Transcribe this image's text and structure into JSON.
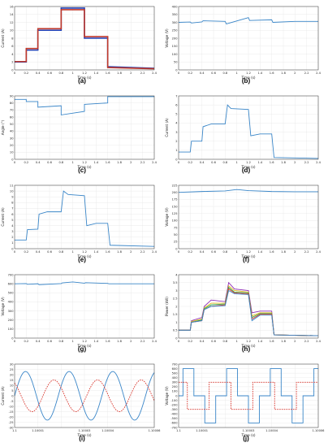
{
  "chart_data": [
    {
      "type": "line",
      "caption": "(a)",
      "xlabel": "Time (s)",
      "ylabel": "Current (A)",
      "xlim": [
        0,
        2.4
      ],
      "ylim": [
        0,
        16
      ],
      "xticks": [
        0,
        0.2,
        0.4,
        0.6,
        0.8,
        1,
        1.2,
        1.4,
        1.6,
        1.8,
        2,
        2.2,
        2.4
      ],
      "yticks": [
        0,
        2,
        4,
        6,
        8,
        10,
        12,
        14,
        16
      ],
      "grid": true,
      "series": [
        {
          "color": "#1f3fb5",
          "x": [
            0,
            0.2,
            0.2,
            0.4,
            0.4,
            0.8,
            0.8,
            1.2,
            1.2,
            1.6,
            1.6,
            2.4
          ],
          "y": [
            2,
            2,
            5,
            5,
            10,
            10,
            15.6,
            15.6,
            8,
            8,
            0.8,
            0.4
          ]
        },
        {
          "color": "#c0392b",
          "x": [
            0,
            0.2,
            0.2,
            0.4,
            0.4,
            0.8,
            0.8,
            1.2,
            1.2,
            1.6,
            1.6,
            2.4
          ],
          "y": [
            2.1,
            2.1,
            5.4,
            5.4,
            10.4,
            10.4,
            15.2,
            15.2,
            8.4,
            8.4,
            0.6,
            0.3
          ]
        }
      ]
    },
    {
      "type": "line",
      "caption": "(b)",
      "xlabel": "Time (s)",
      "ylabel": "Voltage (V)",
      "xlim": [
        0,
        2.4
      ],
      "ylim": [
        0,
        400
      ],
      "xticks": [
        0,
        0.2,
        0.4,
        0.6,
        0.8,
        1,
        1.2,
        1.4,
        1.6,
        1.8,
        2,
        2.2,
        2.4
      ],
      "yticks": [
        0,
        50,
        100,
        150,
        200,
        250,
        300,
        350,
        400
      ],
      "grid": true,
      "series": [
        {
          "color": "#3a86c8",
          "x": [
            0,
            0.2,
            0.22,
            0.4,
            0.42,
            0.8,
            0.82,
            1.2,
            1.22,
            1.6,
            1.62,
            2.0,
            2.4
          ],
          "y": [
            300,
            302,
            296,
            303,
            310,
            306,
            290,
            330,
            312,
            316,
            300,
            306,
            306
          ]
        }
      ]
    },
    {
      "type": "line",
      "caption": "(c)",
      "xlabel": "Time (s)",
      "ylabel": "Angle (°)",
      "xlim": [
        0,
        2.4
      ],
      "ylim": [
        0,
        90
      ],
      "xticks": [
        0,
        0.2,
        0.4,
        0.6,
        0.8,
        1,
        1.2,
        1.4,
        1.6,
        1.8,
        2,
        2.2,
        2.4
      ],
      "yticks": [
        0,
        10,
        20,
        30,
        40,
        50,
        60,
        70,
        80,
        90
      ],
      "grid": true,
      "series": [
        {
          "color": "#3a86c8",
          "x": [
            0,
            0.2,
            0.2,
            0.4,
            0.4,
            0.8,
            0.8,
            1.2,
            1.2,
            1.6,
            1.6,
            2.4
          ],
          "y": [
            85,
            85,
            82,
            82,
            74,
            76,
            63,
            68,
            78,
            80,
            89,
            89
          ]
        }
      ]
    },
    {
      "type": "line",
      "caption": "(d)",
      "xlabel": "Time (s)",
      "ylabel": "Current (A)",
      "xlim": [
        0,
        2.4
      ],
      "ylim": [
        0,
        7
      ],
      "xticks": [
        0,
        0.2,
        0.4,
        0.6,
        0.8,
        1,
        1.2,
        1.4,
        1.6,
        1.8,
        2,
        2.2,
        2.4
      ],
      "yticks": [
        0,
        1,
        2,
        3,
        4,
        5,
        6,
        7
      ],
      "grid": true,
      "series": [
        {
          "color": "#3a86c8",
          "x": [
            0,
            0.2,
            0.22,
            0.4,
            0.42,
            0.56,
            0.8,
            0.84,
            0.9,
            1.2,
            1.24,
            1.4,
            1.6,
            1.64,
            2.4
          ],
          "y": [
            0.8,
            0.8,
            2.0,
            2.0,
            3.6,
            3.9,
            3.9,
            6.0,
            5.6,
            5.5,
            2.6,
            2.8,
            2.8,
            0.2,
            0.1
          ]
        }
      ]
    },
    {
      "type": "line",
      "caption": "(e)",
      "xlabel": "Time (s)",
      "ylabel": "Current (A)",
      "xlim": [
        0,
        2.4
      ],
      "ylim": [
        0,
        11
      ],
      "xticks": [
        0,
        0.2,
        0.4,
        0.6,
        0.8,
        1,
        1.2,
        1.4,
        1.6,
        1.8,
        2,
        2.2,
        2.4
      ],
      "yticks": [
        0,
        1,
        2,
        3,
        4,
        5,
        6,
        7,
        8,
        9,
        10,
        11
      ],
      "grid": true,
      "series": [
        {
          "color": "#3a86c8",
          "x": [
            0,
            0.2,
            0.22,
            0.4,
            0.42,
            0.56,
            0.8,
            0.84,
            0.92,
            1.2,
            1.24,
            1.4,
            1.6,
            1.64,
            2.4
          ],
          "y": [
            1.5,
            1.5,
            3.3,
            3.4,
            6.0,
            6.4,
            6.4,
            10.0,
            9.4,
            9.2,
            4.0,
            4.4,
            4.4,
            0.6,
            0.4
          ]
        }
      ]
    },
    {
      "type": "line",
      "caption": "(f)",
      "xlabel": "Time (s)",
      "ylabel": "Voltage (V)",
      "xlim": [
        0,
        2.4
      ],
      "ylim": [
        0,
        225
      ],
      "xticks": [
        0,
        0.2,
        0.4,
        0.6,
        0.8,
        1,
        1.2,
        1.4,
        1.6,
        1.8,
        2,
        2.2,
        2.4
      ],
      "yticks": [
        0,
        25,
        50,
        75,
        100,
        125,
        150,
        175,
        200,
        225
      ],
      "grid": true,
      "series": [
        {
          "color": "#3a86c8",
          "x": [
            0,
            0.4,
            0.8,
            1.0,
            1.2,
            1.6,
            2.0,
            2.4
          ],
          "y": [
            200,
            203,
            205,
            210,
            206,
            203,
            202,
            202
          ]
        }
      ]
    },
    {
      "type": "line",
      "caption": "(g)",
      "xlabel": "Time (s)",
      "ylabel": "Voltage (V)",
      "xlim": [
        0,
        2.4
      ],
      "ylim": [
        0,
        700
      ],
      "xticks": [
        0,
        0.2,
        0.4,
        0.6,
        0.8,
        1,
        1.2,
        1.4,
        1.6,
        1.8,
        2,
        2.2,
        2.4
      ],
      "yticks": [
        0,
        100,
        200,
        300,
        400,
        500,
        600,
        700
      ],
      "grid": true,
      "series": [
        {
          "color": "#3a86c8",
          "x": [
            0,
            0.2,
            0.22,
            0.4,
            0.42,
            0.8,
            0.82,
            1.0,
            1.2,
            1.22,
            1.6,
            1.62,
            2.4
          ],
          "y": [
            600,
            602,
            594,
            600,
            590,
            602,
            610,
            620,
            606,
            612,
            604,
            600,
            600
          ]
        }
      ]
    },
    {
      "type": "line",
      "caption": "(h)",
      "xlabel": "Time (s)",
      "ylabel": "Power (kW)",
      "xlim": [
        0,
        2.4
      ],
      "ylim": [
        0,
        4
      ],
      "xticks": [
        0,
        0.2,
        0.4,
        0.6,
        0.8,
        1,
        1.2,
        1.4,
        1.6,
        1.8,
        2,
        2.2,
        2.4
      ],
      "yticks": [
        0,
        0.5,
        1,
        1.5,
        2,
        2.5,
        3,
        3.5,
        4
      ],
      "grid": true,
      "series": [
        {
          "color": "#8e2db5",
          "x": [
            0,
            0.2,
            0.22,
            0.4,
            0.44,
            0.56,
            0.8,
            0.86,
            0.96,
            1.2,
            1.26,
            1.4,
            1.6,
            1.64,
            2.4
          ],
          "y": [
            0.5,
            0.5,
            1.1,
            1.3,
            2.0,
            2.4,
            2.3,
            3.5,
            3.1,
            3.0,
            1.6,
            1.7,
            1.7,
            0.2,
            0.15
          ]
        },
        {
          "color": "#e3b81e",
          "x": [
            0,
            0.2,
            0.22,
            0.4,
            0.44,
            0.56,
            0.8,
            0.86,
            0.96,
            1.2,
            1.26,
            1.4,
            1.6,
            1.64,
            2.4
          ],
          "y": [
            0.5,
            0.5,
            1.05,
            1.2,
            1.9,
            2.2,
            2.2,
            3.3,
            3.0,
            2.9,
            1.4,
            1.6,
            1.6,
            0.2,
            0.15
          ]
        },
        {
          "color": "#2aa34a",
          "x": [
            0,
            0.2,
            0.22,
            0.4,
            0.44,
            0.56,
            0.8,
            0.86,
            0.96,
            1.2,
            1.26,
            1.4,
            1.6,
            1.64,
            2.4
          ],
          "y": [
            0.5,
            0.5,
            1.0,
            1.15,
            1.85,
            2.1,
            2.15,
            3.2,
            2.9,
            2.85,
            1.3,
            1.55,
            1.55,
            0.2,
            0.15
          ]
        },
        {
          "color": "#d9342b",
          "x": [
            0,
            0.2,
            0.22,
            0.4,
            0.44,
            0.56,
            0.8,
            0.86,
            0.96,
            1.2,
            1.26,
            1.4,
            1.6,
            1.64,
            2.4
          ],
          "y": [
            0.5,
            0.5,
            1.0,
            1.1,
            1.8,
            2.0,
            2.1,
            3.1,
            2.85,
            2.8,
            1.2,
            1.5,
            1.5,
            0.2,
            0.15
          ]
        },
        {
          "color": "#3a86c8",
          "x": [
            0,
            0.2,
            0.22,
            0.4,
            0.44,
            0.56,
            0.8,
            0.86,
            0.96,
            1.2,
            1.26,
            1.4,
            1.6,
            1.64,
            2.4
          ],
          "y": [
            0.5,
            0.5,
            1.0,
            1.1,
            1.8,
            2.0,
            2.05,
            3.0,
            2.8,
            2.75,
            1.1,
            1.45,
            1.45,
            0.2,
            0.15
          ]
        }
      ]
    },
    {
      "type": "line",
      "caption": "(i)",
      "xlabel": "Time (s)",
      "ylabel": "Current (A)",
      "xlim": [
        1.1,
        1.10006
      ],
      "ylim": [
        -30,
        30
      ],
      "xticks": [
        1.1,
        1.10001,
        1.10002,
        1.10003,
        1.10004,
        1.10005,
        1.10006
      ],
      "xticklabels": [
        "1.1",
        "1.10001",
        "",
        "1.10003",
        "1.10004",
        "",
        "1.10006"
      ],
      "yticks": [
        -30,
        -25,
        -20,
        -15,
        -10,
        -5,
        0,
        5,
        10,
        15,
        20,
        25,
        30
      ],
      "grid": true,
      "series": [
        {
          "color": "#3a86c8",
          "dash": false,
          "kind": "sine",
          "amplitude": 23,
          "cycles": 3.2,
          "phase": 0
        },
        {
          "color": "#d9342b",
          "dash": true,
          "kind": "sine",
          "amplitude": 15,
          "cycles": 3.2,
          "phase": 2.2
        }
      ]
    },
    {
      "type": "line",
      "caption": "(j)",
      "xlabel": "Time (s)",
      "ylabel": "Voltage (V)",
      "xlim": [
        1.1,
        1.10006
      ],
      "ylim": [
        -700,
        700
      ],
      "xticks": [
        1.1,
        1.10001,
        1.10002,
        1.10003,
        1.10004,
        1.10005,
        1.10006
      ],
      "xticklabels": [
        "1.1",
        "1.10001",
        "",
        "1.10003",
        "1.10004",
        "",
        "1.10006"
      ],
      "yticks": [
        -700,
        -600,
        -500,
        -400,
        -300,
        -200,
        -100,
        0,
        100,
        200,
        300,
        400,
        500,
        600,
        700
      ],
      "grid": true,
      "series": [
        {
          "color": "#3a86c8",
          "dash": false,
          "kind": "stepped",
          "levels": [
            0,
            600,
            0,
            -600
          ],
          "cycles": 3.2,
          "phase": 0.15
        },
        {
          "color": "#d9342b",
          "dash": true,
          "kind": "stepped",
          "levels": [
            300,
            300,
            -300,
            -300
          ],
          "cycles": 3.2,
          "phase": 0.3
        }
      ]
    }
  ]
}
